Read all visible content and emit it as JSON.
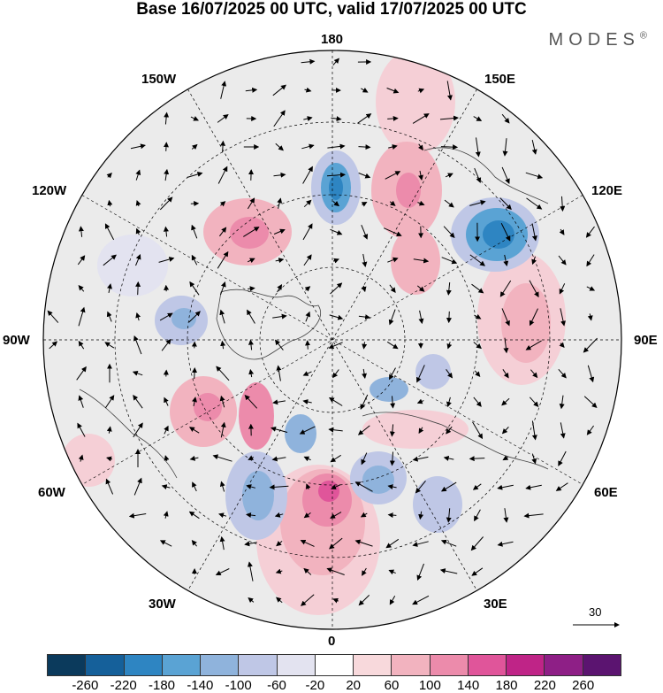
{
  "title": "Base 16/07/2025 00 UTC, valid 17/07/2025 00 UTC",
  "brand": "MODES",
  "brand_mark": "®",
  "longitude_labels": {
    "top": "180",
    "top_left": "150W",
    "top_right": "150E",
    "upper_left": "120W",
    "upper_right": "120E",
    "left": "90W",
    "right": "90E",
    "lower_left": "60W",
    "lower_right": "60E",
    "bottom_left": "30W",
    "bottom_right": "30E",
    "bottom": "0"
  },
  "reference_vector": "30",
  "colorbar": {
    "colors": [
      "#0b3a5c",
      "#15609a",
      "#2e85c2",
      "#5aa3d4",
      "#8fb3dc",
      "#bfc7e6",
      "#e3e3f0",
      "#ffffff",
      "#f8d9dc",
      "#f2b3bf",
      "#ec8bab",
      "#e0559a",
      "#bf2487",
      "#8e1f86",
      "#5b1470"
    ],
    "tick_labels": [
      "-260",
      "-220",
      "-180",
      "-140",
      "-100",
      "-60",
      "-20",
      "20",
      "60",
      "100",
      "140",
      "180",
      "220",
      "260"
    ]
  },
  "colors": {
    "positive_anomaly": "#ec8bab",
    "negative_anomaly": "#5aa3d4",
    "background_field": "#e8e8e8",
    "coastline": "#444444"
  }
}
